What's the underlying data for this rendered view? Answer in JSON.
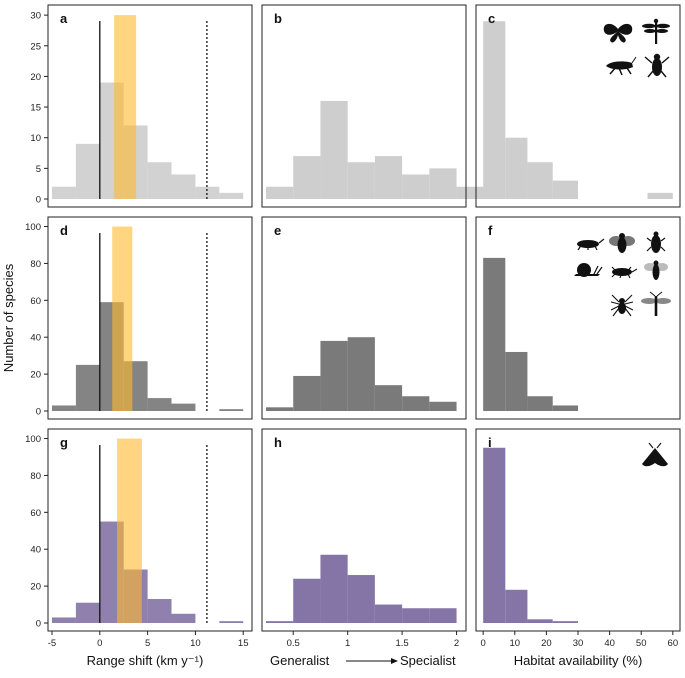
{
  "colors": {
    "gray_light": "#cecece",
    "gray_dark": "#7a7a7a",
    "purple": "#8575a6",
    "orange": "#ffb92e",
    "frame": "#222222"
  },
  "labels": {
    "y_title": "Number of species",
    "x_titles": [
      "Range shift (km y⁻¹)",
      "Generalist",
      "Specialist",
      "Habitat availability (%)"
    ],
    "specialist_arrow": "Generalist → Specialist"
  },
  "chart_data": [
    {
      "type": "bar",
      "panel": "a",
      "row": 0,
      "col": 0,
      "title": "a",
      "xlim": [
        -5,
        15.5
      ],
      "ylim": [
        0,
        31
      ],
      "xticks": [],
      "yticks": [
        0,
        5,
        10,
        15,
        20,
        25,
        30
      ],
      "bins": [
        [
          -5,
          -2.5,
          2
        ],
        [
          -2.5,
          0,
          9
        ],
        [
          0,
          2.5,
          19
        ],
        [
          2.5,
          5,
          12
        ],
        [
          5,
          7.5,
          6
        ],
        [
          7.5,
          10,
          4
        ],
        [
          10,
          12.5,
          2
        ],
        [
          12.5,
          15,
          1
        ]
      ],
      "overlay": {
        "range": [
          1.5,
          3.8
        ],
        "value": 30
      },
      "vline_solid": 0,
      "vline_dotted": 11.2
    },
    {
      "type": "bar",
      "panel": "b",
      "row": 0,
      "col": 1,
      "title": "b",
      "xlim": [
        0.25,
        2.05
      ],
      "ylim": [
        0,
        31
      ],
      "xticks": [],
      "yticks": [],
      "bins": [
        [
          0.25,
          0.5,
          2
        ],
        [
          0.5,
          0.75,
          7
        ],
        [
          0.75,
          1.0,
          16
        ],
        [
          1.0,
          1.25,
          6
        ],
        [
          1.25,
          1.5,
          7
        ],
        [
          1.5,
          1.75,
          4
        ],
        [
          1.75,
          2.0,
          5
        ],
        [
          2.0,
          2.25,
          2
        ]
      ]
    },
    {
      "type": "bar",
      "panel": "c",
      "row": 0,
      "col": 2,
      "title": "c",
      "xlim": [
        -1,
        61
      ],
      "ylim": [
        0,
        31
      ],
      "xticks": [],
      "yticks": [],
      "bins": [
        [
          0,
          7,
          29
        ],
        [
          7,
          14,
          10
        ],
        [
          14,
          22,
          6
        ],
        [
          22,
          30,
          3
        ],
        [
          52,
          60,
          1
        ]
      ]
    },
    {
      "type": "bar",
      "panel": "d",
      "row": 1,
      "col": 0,
      "title": "d",
      "xlim": [
        -5,
        15.5
      ],
      "ylim": [
        0,
        103
      ],
      "xticks": [],
      "yticks": [
        0,
        20,
        40,
        60,
        80,
        100
      ],
      "bins": [
        [
          -5,
          -2.5,
          3
        ],
        [
          -2.5,
          0,
          25
        ],
        [
          0,
          2.5,
          59
        ],
        [
          2.5,
          5,
          27
        ],
        [
          5,
          7.5,
          7
        ],
        [
          7.5,
          10,
          4
        ],
        [
          12.5,
          15,
          1
        ]
      ],
      "overlay": {
        "range": [
          1.3,
          3.4
        ],
        "value": 100
      },
      "vline_solid": 0,
      "vline_dotted": 11.2
    },
    {
      "type": "bar",
      "panel": "e",
      "row": 1,
      "col": 1,
      "title": "e",
      "xlim": [
        0.25,
        2.05
      ],
      "ylim": [
        0,
        103
      ],
      "xticks": [],
      "yticks": [],
      "bins": [
        [
          0.25,
          0.5,
          2
        ],
        [
          0.5,
          0.75,
          19
        ],
        [
          0.75,
          1.0,
          38
        ],
        [
          1.0,
          1.25,
          40
        ],
        [
          1.25,
          1.5,
          14
        ],
        [
          1.5,
          1.75,
          8
        ],
        [
          1.75,
          2.0,
          5
        ]
      ]
    },
    {
      "type": "bar",
      "panel": "f",
      "row": 1,
      "col": 2,
      "title": "f",
      "xlim": [
        -1,
        61
      ],
      "ylim": [
        0,
        103
      ],
      "xticks": [],
      "yticks": [],
      "bins": [
        [
          0,
          7,
          83
        ],
        [
          7,
          14,
          32
        ],
        [
          14,
          22,
          8
        ],
        [
          22,
          30,
          3
        ]
      ]
    },
    {
      "type": "bar",
      "panel": "g",
      "row": 2,
      "col": 0,
      "title": "g",
      "xlim": [
        -5,
        15.5
      ],
      "ylim": [
        0,
        103
      ],
      "xticks": [
        -5,
        0,
        5,
        10,
        15
      ],
      "yticks": [
        0,
        20,
        40,
        60,
        80,
        100
      ],
      "bins": [
        [
          -5,
          -2.5,
          3
        ],
        [
          -2.5,
          0,
          11
        ],
        [
          0,
          2.5,
          55
        ],
        [
          2.5,
          5,
          29
        ],
        [
          5,
          7.5,
          13
        ],
        [
          7.5,
          10,
          5
        ],
        [
          12.5,
          15,
          1
        ]
      ],
      "overlay": {
        "range": [
          1.8,
          4.4
        ],
        "value": 100
      },
      "vline_solid": 0,
      "vline_dotted": 11.2
    },
    {
      "type": "bar",
      "panel": "h",
      "row": 2,
      "col": 1,
      "title": "h",
      "xlim": [
        0.25,
        2.05
      ],
      "ylim": [
        0,
        103
      ],
      "xticks": [
        0.5,
        1.0,
        1.5,
        2.0
      ],
      "yticks": [],
      "bins": [
        [
          0.25,
          0.5,
          1
        ],
        [
          0.5,
          0.75,
          24
        ],
        [
          0.75,
          1.0,
          37
        ],
        [
          1.0,
          1.25,
          26
        ],
        [
          1.25,
          1.5,
          10
        ],
        [
          1.5,
          1.75,
          8
        ],
        [
          1.75,
          2.0,
          8
        ]
      ]
    },
    {
      "type": "bar",
      "panel": "i",
      "row": 2,
      "col": 2,
      "title": "i",
      "xlim": [
        -1,
        61
      ],
      "ylim": [
        0,
        103
      ],
      "xticks": [
        0,
        10,
        20,
        30,
        40,
        50,
        60
      ],
      "yticks": [],
      "bins": [
        [
          0,
          7,
          95
        ],
        [
          7,
          14,
          18
        ],
        [
          14,
          22,
          2
        ],
        [
          22,
          30,
          1
        ]
      ]
    }
  ]
}
